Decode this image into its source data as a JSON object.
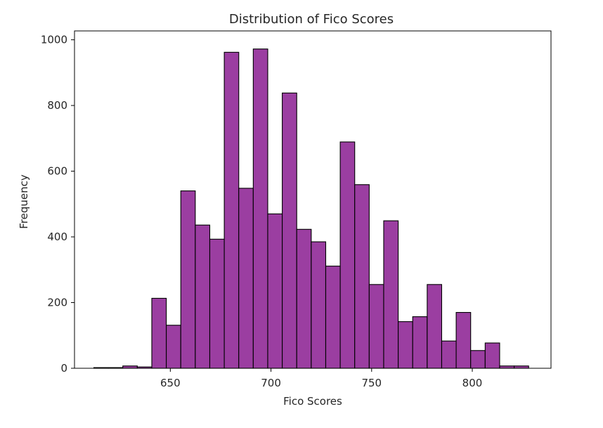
{
  "chart_data": {
    "type": "bar",
    "title": "Distribution of Fico Scores",
    "xlabel": "Fico Scores",
    "ylabel": "Frequency",
    "xlim": [
      602.4,
      839.1
    ],
    "ylim": [
      0,
      1027
    ],
    "xticks": [
      650,
      700,
      750,
      800
    ],
    "yticks": [
      0,
      200,
      400,
      600,
      800,
      1000
    ],
    "grid": false,
    "bar_color": "#9b3ea1",
    "edge_color": "#000000",
    "bins": {
      "edges": [
        612,
        619.2,
        626.4,
        633.6,
        640.8,
        648,
        655.2,
        662.4,
        669.6,
        676.8,
        684,
        691.2,
        698.4,
        705.6,
        712.8,
        720,
        727.2,
        734.4,
        741.6,
        748.8,
        756,
        763.2,
        770.4,
        777.6,
        784.8,
        792,
        799.2,
        806.4,
        813.6,
        820.8,
        828
      ],
      "counts": [
        2,
        2,
        7,
        4,
        213,
        131,
        540,
        436,
        393,
        962,
        548,
        972,
        470,
        838,
        423,
        385,
        311,
        689,
        559,
        255,
        449,
        142,
        157,
        255,
        83,
        170,
        54,
        77,
        7,
        7
      ]
    }
  }
}
